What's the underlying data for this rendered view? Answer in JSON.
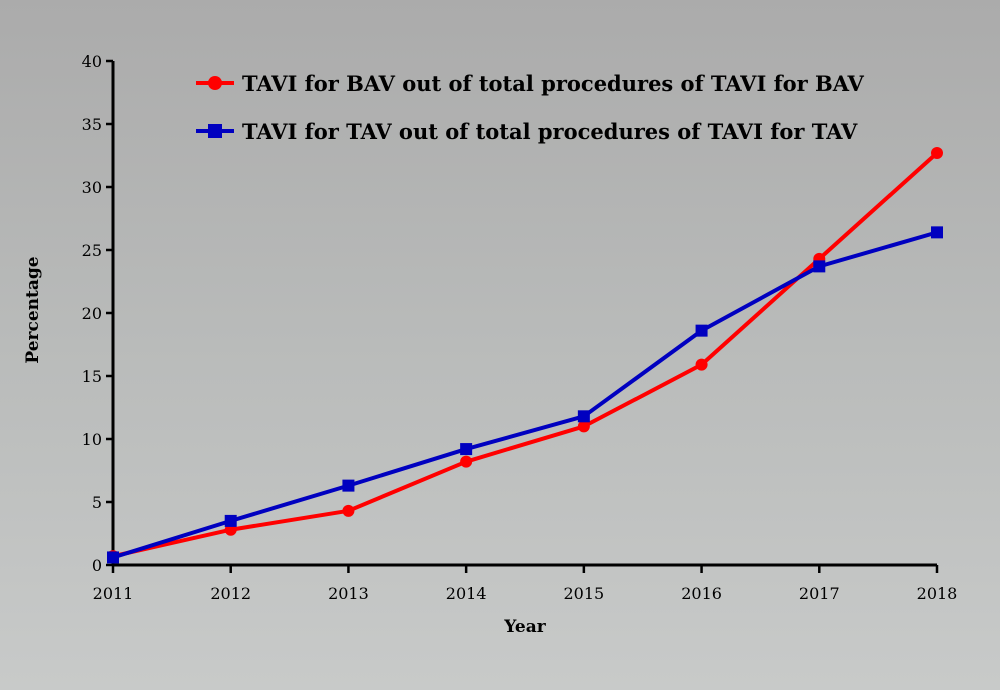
{
  "chart_data": {
    "type": "line",
    "title": "",
    "xlabel": "Year",
    "ylabel": "Percentage",
    "x": [
      "2011",
      "2012",
      "2013",
      "2014",
      "2015",
      "2016",
      "2017",
      "2018"
    ],
    "ylim": [
      0,
      40
    ],
    "yticks": [
      "0",
      "5",
      "10",
      "15",
      "20",
      "25",
      "30",
      "35",
      "40"
    ],
    "grid": false,
    "legend_position": "top",
    "series": [
      {
        "name": "TAVI for BAV out of total procedures of TAVI for BAV",
        "color": "#ff0000",
        "marker": "circle",
        "values": [
          0.7,
          2.8,
          4.3,
          8.2,
          11.0,
          15.9,
          24.3,
          32.7
        ]
      },
      {
        "name": "TAVI for TAV out of total procedures of TAVI for TAV",
        "color": "#0000c0",
        "marker": "square",
        "values": [
          0.6,
          3.5,
          6.3,
          9.2,
          11.8,
          18.6,
          23.7,
          26.4
        ]
      }
    ]
  }
}
